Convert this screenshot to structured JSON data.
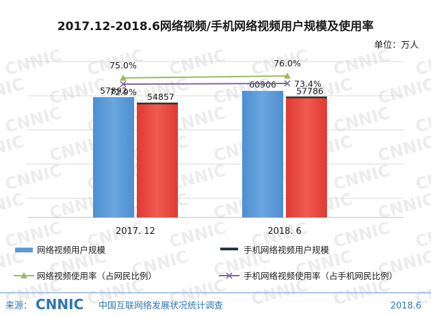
{
  "header": {
    "title": "2017.12-2018.6网络视频/手机网络视频用户规模及使用率",
    "unit": "单位：万人"
  },
  "watermark": "CNNIC",
  "chart_data": {
    "type": "bar",
    "categories": [
      "2017. 12",
      "2018. 6"
    ],
    "series": [
      {
        "name": "网络视频用户规模",
        "kind": "bar",
        "color": "#5b9bd5",
        "values": [
          57892,
          60906
        ],
        "labels": [
          "57892",
          "60906"
        ]
      },
      {
        "name": "手机网络视频用户规模",
        "kind": "bar",
        "color": "#e8463e",
        "values": [
          54857,
          57786
        ],
        "labels": [
          "54857",
          "57786"
        ]
      },
      {
        "name": "网络视频使用率（占网民比例）",
        "kind": "line",
        "color": "#9bbb59",
        "values": [
          75.0,
          76.0
        ],
        "labels": [
          "75.0%",
          "76.0%"
        ]
      },
      {
        "name": "手机网络视频使用率（占手机网民比例）",
        "kind": "line",
        "color": "#8064a2",
        "values": [
          72.9,
          73.4
        ],
        "labels": [
          "72.9%",
          "73.4%"
        ]
      }
    ],
    "grid": true,
    "legend": "bottom"
  },
  "footer": {
    "source_label": "来源：",
    "logo": "CNNIC",
    "source_name": "中国互联网络发展状况统计调查",
    "date": "2018.6"
  }
}
